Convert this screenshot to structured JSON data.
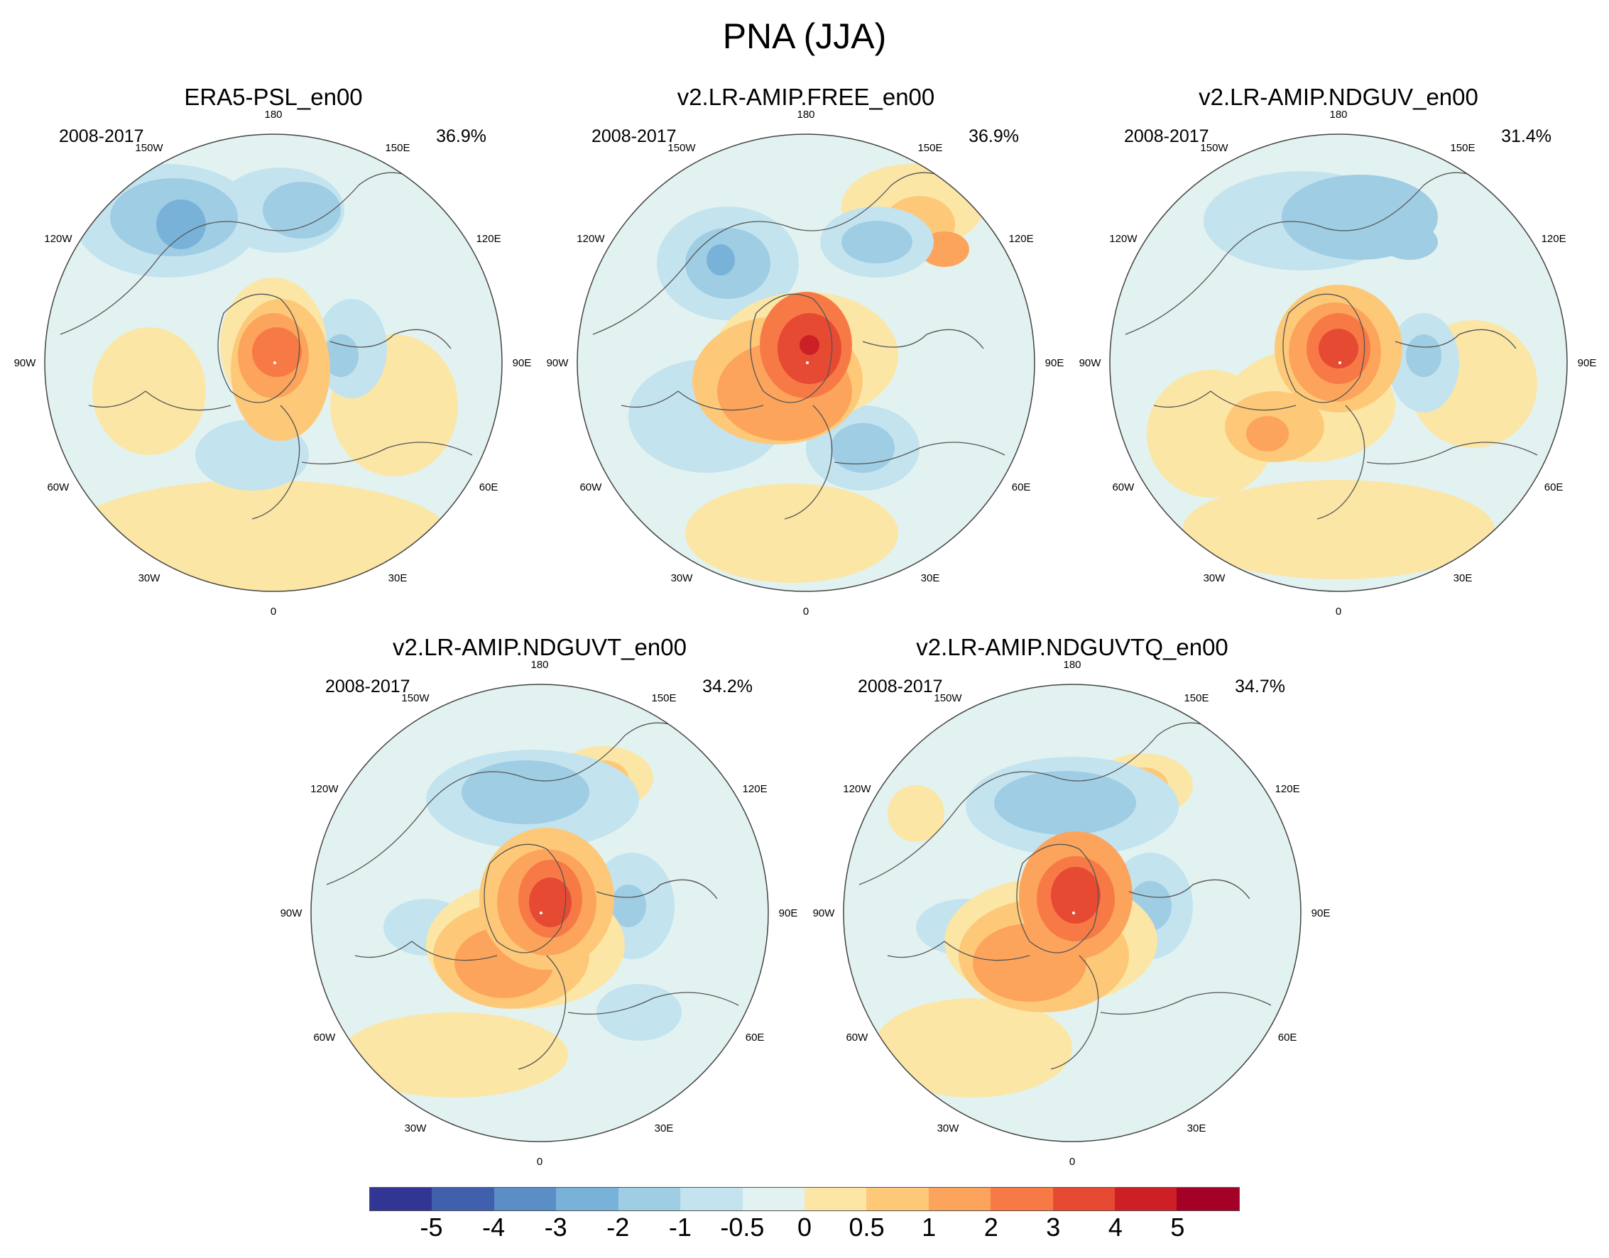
{
  "figure": {
    "title": "PNA (JJA)"
  },
  "longitude_labels": [
    "180",
    "150E",
    "120E",
    "90E",
    "60E",
    "30E",
    "0",
    "30W",
    "60W",
    "90W",
    "120W",
    "150W"
  ],
  "panels": [
    {
      "title": "ERA5-PSL_en00",
      "period": "2008-2017",
      "variance": "36.9%"
    },
    {
      "title": "v2.LR-AMIP.FREE_en00",
      "period": "2008-2017",
      "variance": "36.9%"
    },
    {
      "title": "v2.LR-AMIP.NDGUV_en00",
      "period": "2008-2017",
      "variance": "31.4%"
    },
    {
      "title": "v2.LR-AMIP.NDGUVT_en00",
      "period": "2008-2017",
      "variance": "34.2%"
    },
    {
      "title": "v2.LR-AMIP.NDGUVTQ_en00",
      "period": "2008-2017",
      "variance": "34.7%"
    }
  ],
  "colorbar": {
    "colors": [
      "#313695",
      "#4060ad",
      "#5a8ec4",
      "#79b2d9",
      "#9fcde4",
      "#c3e3ef",
      "#e2f2f0",
      "#fbe6a6",
      "#fdc978",
      "#fca45c",
      "#f77a46",
      "#e64a33",
      "#cc1f26",
      "#a50026"
    ],
    "labels": [
      "-5",
      "-4",
      "-3",
      "-2",
      "-1",
      "-0.5",
      "0",
      "0.5",
      "1",
      "2",
      "3",
      "4",
      "5"
    ]
  }
}
